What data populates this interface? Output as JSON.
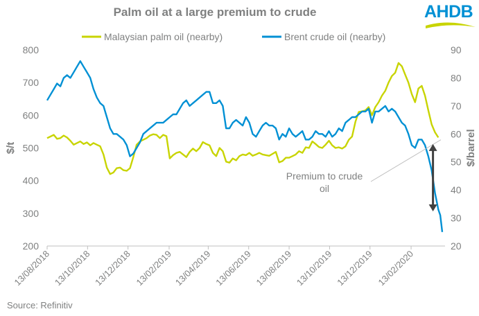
{
  "header": {
    "title": "Palm oil at a large premium to crude",
    "logo_text": "AHDB"
  },
  "footer": {
    "source": "Source: Refinitiv"
  },
  "colors": {
    "palm": "#c8d400",
    "brent": "#0090d4",
    "text": "#7f8080",
    "axis": "#bfbfbf",
    "arrow": "#404040",
    "callout_line": "#bfbfbf"
  },
  "chart_data": {
    "type": "line",
    "title": "Palm oil at a large premium to crude",
    "ylabel_left": "$/t",
    "ylabel_right": "$/barrel",
    "ylim_left": [
      200,
      800
    ],
    "ylim_right": [
      20,
      90
    ],
    "yticks_left": [
      200,
      300,
      400,
      500,
      600,
      700,
      800
    ],
    "yticks_right": [
      20,
      30,
      40,
      50,
      60,
      70,
      80,
      90
    ],
    "x_range": [
      "2018-08-13",
      "2020-03-31"
    ],
    "x_ticks": [
      "13/08/2018",
      "13/10/2018",
      "13/12/2018",
      "13/02/2019",
      "13/04/2019",
      "13/06/2019",
      "13/08/2019",
      "13/10/2019",
      "13/12/2019",
      "13/02/2020"
    ],
    "x_tick_days": [
      0,
      61,
      122,
      184,
      243,
      304,
      365,
      426,
      487,
      549
    ],
    "x_max_day": 596,
    "grid": false,
    "legend_position": "top",
    "series": [
      {
        "name": "Malaysian palm oil (nearby)",
        "axis": "left",
        "color": "#c8d400",
        "days": [
          0,
          5,
          10,
          15,
          20,
          25,
          30,
          35,
          40,
          45,
          50,
          55,
          60,
          65,
          70,
          75,
          80,
          85,
          90,
          95,
          100,
          105,
          110,
          115,
          120,
          125,
          130,
          135,
          140,
          145,
          150,
          155,
          160,
          165,
          170,
          175,
          180,
          185,
          190,
          195,
          200,
          205,
          210,
          215,
          220,
          225,
          230,
          235,
          240,
          245,
          250,
          255,
          260,
          265,
          270,
          275,
          280,
          285,
          290,
          295,
          300,
          305,
          310,
          315,
          320,
          325,
          330,
          335,
          340,
          345,
          350,
          355,
          360,
          365,
          370,
          375,
          380,
          385,
          390,
          395,
          400,
          405,
          410,
          415,
          420,
          425,
          430,
          435,
          440,
          445,
          450,
          455,
          460,
          465,
          470,
          475,
          480,
          485,
          490,
          495,
          500,
          505,
          510,
          515,
          520,
          525,
          530,
          535,
          540,
          545,
          550,
          555,
          560,
          565,
          570,
          575,
          580,
          585,
          590
        ],
        "values": [
          530,
          535,
          540,
          528,
          530,
          538,
          532,
          522,
          510,
          515,
          520,
          512,
          517,
          508,
          515,
          510,
          505,
          480,
          440,
          420,
          425,
          438,
          440,
          432,
          430,
          438,
          472,
          510,
          520,
          525,
          530,
          538,
          542,
          540,
          530,
          540,
          536,
          468,
          478,
          485,
          488,
          480,
          472,
          488,
          498,
          490,
          500,
          518,
          512,
          508,
          485,
          475,
          500,
          490,
          458,
          455,
          468,
          462,
          475,
          480,
          478,
          485,
          476,
          480,
          485,
          480,
          478,
          476,
          482,
          488,
          456,
          460,
          470,
          470,
          475,
          480,
          490,
          485,
          502,
          500,
          520,
          512,
          503,
          500,
          510,
          522,
          508,
          500,
          502,
          498,
          505,
          525,
          535,
          580,
          610,
          612,
          615,
          625,
          600,
          625,
          640,
          660,
          675,
          700,
          720,
          730,
          760,
          750,
          725,
          700,
          665,
          640,
          682,
          690,
          660,
          615,
          572,
          548,
          532
        ]
      },
      {
        "name": "Brent crude oil (nearby)",
        "axis": "right",
        "color": "#0090d4",
        "days": [
          0,
          5,
          10,
          15,
          20,
          25,
          30,
          35,
          40,
          45,
          50,
          55,
          60,
          65,
          70,
          75,
          80,
          85,
          90,
          95,
          100,
          105,
          110,
          115,
          120,
          125,
          130,
          135,
          140,
          145,
          150,
          155,
          160,
          165,
          170,
          175,
          180,
          185,
          190,
          195,
          200,
          205,
          210,
          215,
          220,
          225,
          230,
          235,
          240,
          245,
          250,
          255,
          260,
          265,
          270,
          275,
          280,
          285,
          290,
          295,
          300,
          305,
          310,
          315,
          320,
          325,
          330,
          335,
          340,
          345,
          350,
          355,
          360,
          365,
          370,
          375,
          380,
          385,
          390,
          395,
          400,
          405,
          410,
          415,
          420,
          425,
          430,
          435,
          440,
          445,
          450,
          455,
          460,
          465,
          470,
          475,
          480,
          485,
          490,
          495,
          500,
          505,
          510,
          515,
          520,
          525,
          530,
          535,
          540,
          545,
          550,
          555,
          560,
          565,
          570,
          575,
          580,
          585,
          590,
          593,
          596
        ],
        "values": [
          72,
          74,
          76,
          78,
          77,
          80,
          81,
          80,
          82,
          84,
          86,
          84,
          82,
          80,
          76,
          73,
          71,
          70,
          66,
          62,
          60,
          60,
          59,
          58,
          56,
          52,
          53,
          55,
          57,
          60,
          61,
          62,
          63,
          64,
          64,
          64,
          65,
          66,
          67,
          67,
          69,
          71,
          72,
          70,
          71,
          72,
          73,
          74,
          75,
          75,
          71,
          71,
          72,
          70,
          62,
          62,
          64,
          65,
          64,
          63,
          66,
          64,
          60,
          59,
          61,
          63,
          64,
          63,
          63,
          62,
          58,
          60,
          59,
          62,
          60,
          59,
          60,
          61,
          58,
          58,
          59,
          61,
          60,
          60,
          59,
          61,
          59,
          60,
          62,
          61,
          64,
          65,
          66,
          66,
          67,
          68,
          68,
          69,
          64,
          68,
          68,
          69,
          70,
          68,
          69,
          68,
          66,
          64,
          63,
          60,
          56,
          55,
          58,
          58,
          56,
          52,
          47,
          39,
          33,
          31,
          25
        ]
      }
    ],
    "annotations": [
      {
        "type": "callout",
        "text": "Premium to crude oil",
        "lines": [
          "Premium to crude",
          "oil"
        ],
        "target_day": 596,
        "target_value_left": 525
      },
      {
        "type": "double-arrow",
        "day": 582,
        "from_value_left": 512,
        "to_value_left": 306
      }
    ]
  }
}
